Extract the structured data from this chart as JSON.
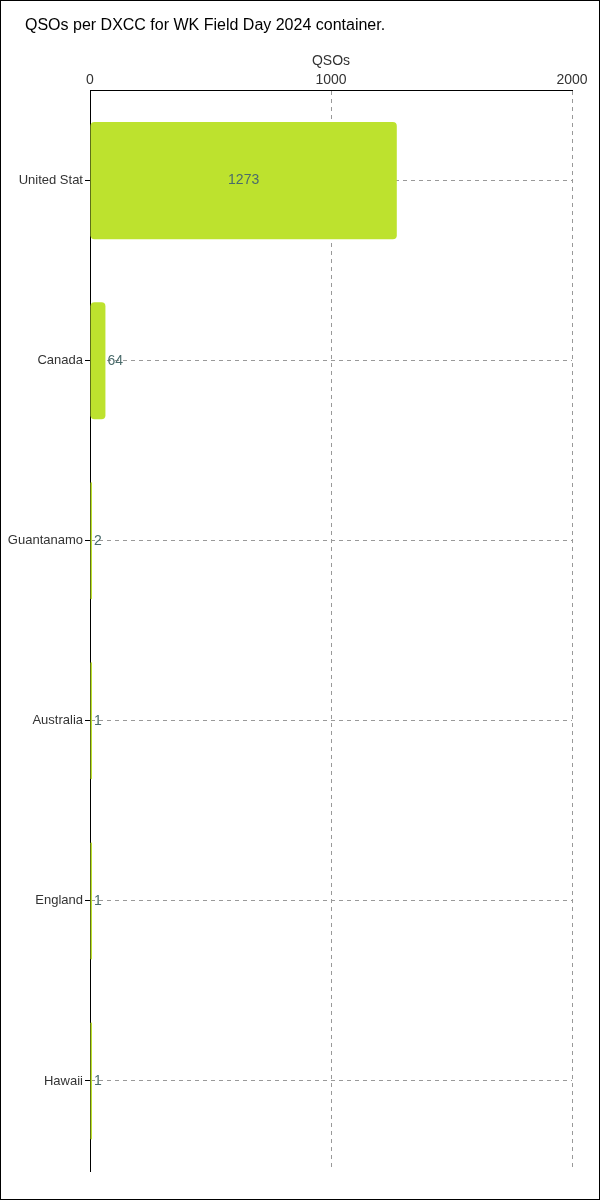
{
  "chart_data": {
    "type": "bar",
    "orientation": "horizontal",
    "title": "QSOs per DXCC for WK Field Day 2024 container.",
    "xlabel": "QSOs",
    "categories": [
      "United Stat",
      "Canada",
      "Guantanamo",
      "Australia",
      "England",
      "Hawaii"
    ],
    "values": [
      1273,
      64,
      2,
      1,
      1,
      1
    ],
    "color": "#bde22e",
    "xlim": [
      0,
      2000
    ],
    "xticks": [
      0,
      1000,
      2000
    ],
    "grid": true,
    "data_labels": true
  }
}
